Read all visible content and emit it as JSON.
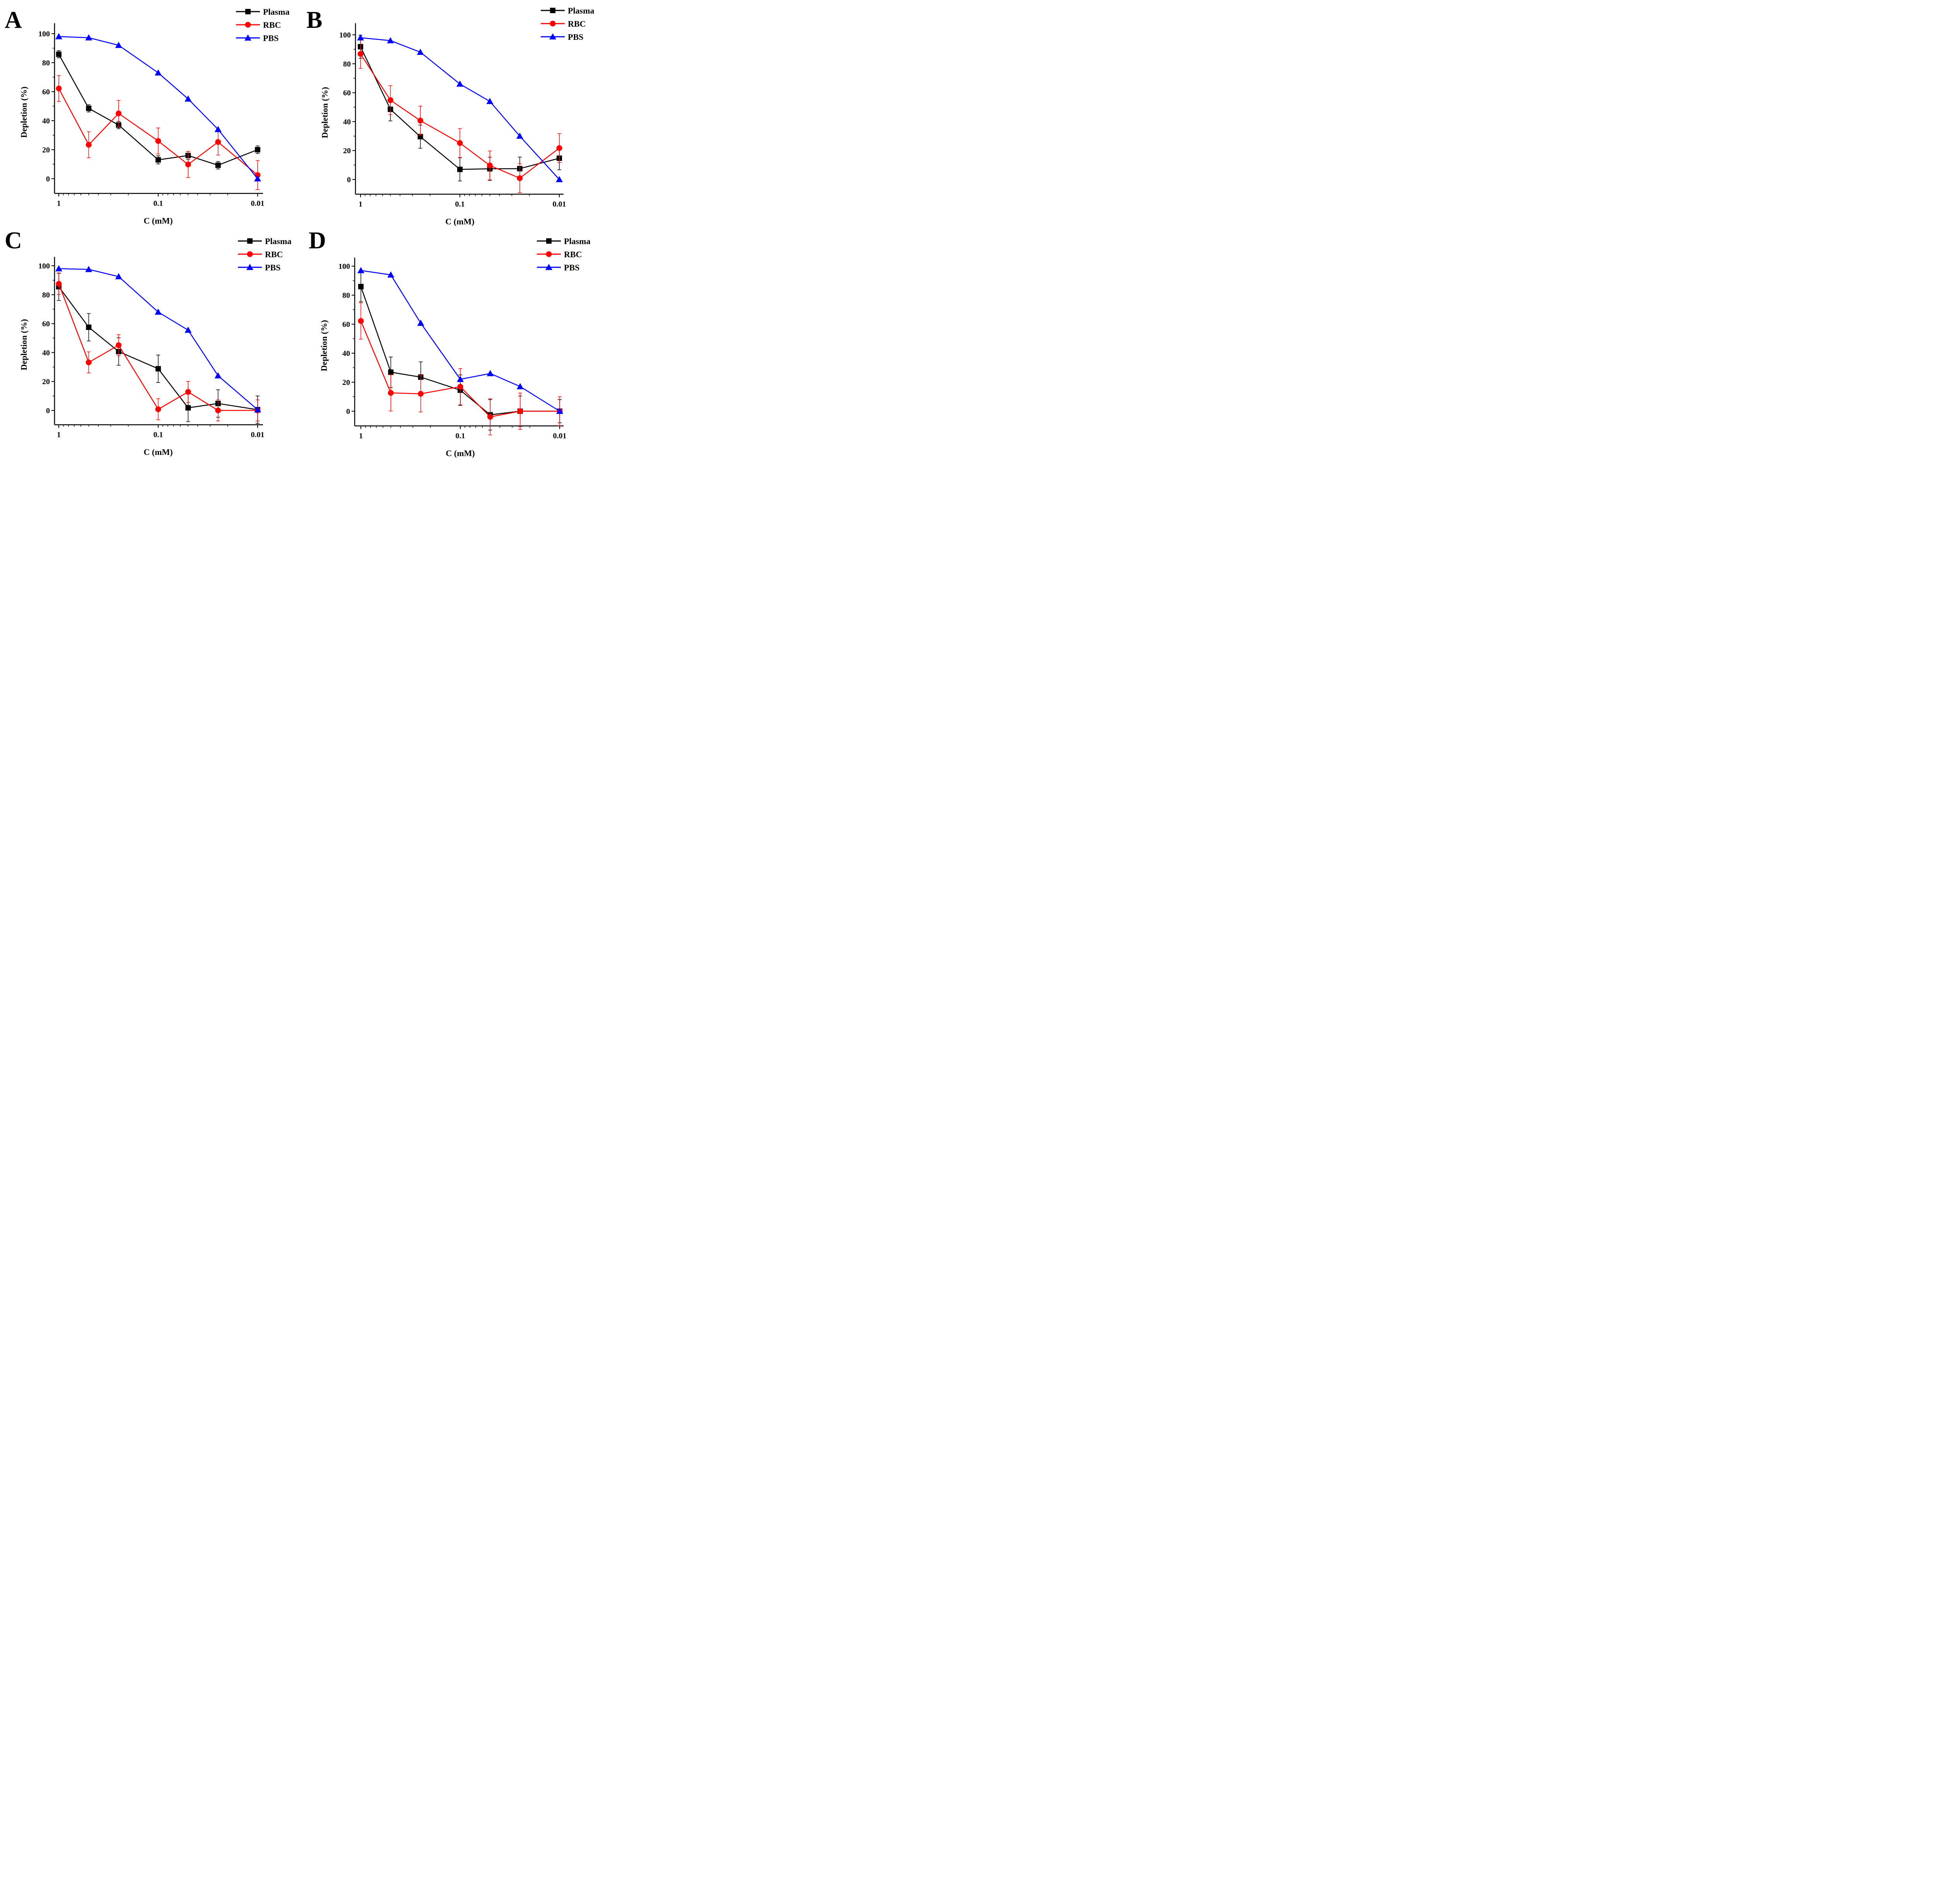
{
  "chart_data": [
    {
      "panel": "A",
      "type": "line",
      "xscale": "log",
      "xaxis_reversed": true,
      "xlabel": "C (mM)",
      "ylabel": "Depletion (%)",
      "xticks": [
        1,
        0.1,
        0.01
      ],
      "xtick_labels": [
        "1",
        "0.1",
        "0.01"
      ],
      "yticks": [
        0,
        20,
        40,
        60,
        80,
        100
      ],
      "ylim": [
        -10,
        105
      ],
      "legend_position": "top-right",
      "x": [
        1,
        0.5,
        0.25,
        0.1,
        0.05,
        0.025,
        0.01
      ],
      "series": [
        {
          "name": "Plasma",
          "color": "#000000",
          "marker": "square",
          "values": [
            85.8,
            48.5,
            37.0,
            13.0,
            16.0,
            9.3,
            20.0
          ],
          "errors": [
            2.5,
            2.5,
            2.5,
            2.8,
            2.8,
            2.6,
            2.6
          ]
        },
        {
          "name": "RBC",
          "color": "#ff0000",
          "marker": "circle",
          "values": [
            62.2,
            23.4,
            45.0,
            26.0,
            9.8,
            25.3,
            2.5
          ],
          "errors": [
            8.9,
            9.0,
            9.0,
            9.0,
            9.0,
            9.0,
            10.0
          ]
        },
        {
          "name": "PBS",
          "color": "#0000ff",
          "marker": "triangle",
          "values": [
            98.0,
            97.2,
            92.0,
            73.0,
            55.0,
            34.0,
            0.0
          ],
          "errors": null
        }
      ]
    },
    {
      "panel": "B",
      "type": "line",
      "xscale": "log",
      "xaxis_reversed": true,
      "xlabel": "C (mM)",
      "ylabel": "Depletion (%)",
      "xticks": [
        1,
        0.1,
        0.01
      ],
      "xtick_labels": [
        "1",
        "0.1",
        "0.01"
      ],
      "yticks": [
        0,
        20,
        40,
        60,
        80,
        100
      ],
      "ylim": [
        -10,
        105
      ],
      "legend_position": "top-right",
      "x": [
        1,
        0.5,
        0.25,
        0.1,
        0.05,
        0.025,
        0.01
      ],
      "series": [
        {
          "name": "Plasma",
          "color": "#000000",
          "marker": "square",
          "values": [
            91.8,
            48.5,
            29.6,
            7.0,
            7.4,
            7.5,
            14.7
          ],
          "errors": [
            8.0,
            8.0,
            8.0,
            8.0,
            8.0,
            8.0,
            8.0
          ]
        },
        {
          "name": "RBC",
          "color": "#ff0000",
          "marker": "circle",
          "values": [
            86.8,
            54.8,
            40.7,
            25.2,
            9.7,
            0.9,
            21.7
          ],
          "errors": [
            10.0,
            10.0,
            10.0,
            10.0,
            10.0,
            10.0,
            10.0
          ]
        },
        {
          "name": "PBS",
          "color": "#0000ff",
          "marker": "triangle",
          "values": [
            98.0,
            96.0,
            88.0,
            66.0,
            54.0,
            30.0,
            0.0
          ],
          "errors": null
        }
      ]
    },
    {
      "panel": "C",
      "type": "line",
      "xscale": "log",
      "xaxis_reversed": true,
      "xlabel": "C (mM)",
      "ylabel": "Depletion (%)",
      "xticks": [
        1,
        0.1,
        0.01
      ],
      "xtick_labels": [
        "1",
        "0.1",
        "0.01"
      ],
      "yticks": [
        0,
        20,
        40,
        60,
        80,
        100
      ],
      "ylim": [
        -10,
        105
      ],
      "legend_position": "top-right",
      "x": [
        1,
        0.5,
        0.25,
        0.1,
        0.05,
        0.025,
        0.01
      ],
      "series": [
        {
          "name": "Plasma",
          "color": "#000000",
          "marker": "square",
          "values": [
            85.5,
            57.5,
            40.7,
            28.8,
            1.8,
            4.8,
            0.5
          ],
          "errors": [
            9.5,
            9.5,
            9.5,
            9.5,
            9.5,
            9.5,
            9.5
          ]
        },
        {
          "name": "RBC",
          "color": "#ff0000",
          "marker": "circle",
          "values": [
            87.5,
            33.2,
            45.1,
            0.8,
            12.8,
            0.0,
            0.0
          ],
          "errors": [
            7.3,
            7.3,
            7.3,
            7.3,
            7.3,
            7.3,
            7.3
          ]
        },
        {
          "name": "PBS",
          "color": "#0000ff",
          "marker": "triangle",
          "values": [
            98.0,
            97.5,
            92.5,
            68.0,
            55.5,
            24.0,
            0.5
          ],
          "errors": null
        }
      ]
    },
    {
      "panel": "D",
      "type": "line",
      "xscale": "log",
      "xaxis_reversed": true,
      "xlabel": "C (mM)",
      "ylabel": "Depletion (%)",
      "xticks": [
        1,
        0.1,
        0.01
      ],
      "xtick_labels": [
        "1",
        "0.1",
        "0.01"
      ],
      "yticks": [
        0,
        20,
        40,
        60,
        80,
        100
      ],
      "ylim": [
        -10,
        105
      ],
      "legend_position": "top-right",
      "x": [
        1,
        0.5,
        0.25,
        0.1,
        0.05,
        0.025,
        0.01
      ],
      "series": [
        {
          "name": "Plasma",
          "color": "#000000",
          "marker": "square",
          "values": [
            85.9,
            26.9,
            23.5,
            14.5,
            -2.5,
            0.0,
            0.0
          ],
          "errors": [
            10.5,
            10.5,
            10.5,
            10.5,
            10.5,
            10.5,
            8.0
          ]
        },
        {
          "name": "RBC",
          "color": "#ff0000",
          "marker": "circle",
          "values": [
            62.2,
            12.6,
            12.0,
            16.9,
            -3.9,
            0.0,
            0.0
          ],
          "errors": [
            12.5,
            12.5,
            12.5,
            12.5,
            12.5,
            12.5,
            10.0
          ]
        },
        {
          "name": "PBS",
          "color": "#0000ff",
          "marker": "triangle",
          "values": [
            97.0,
            94.0,
            60.7,
            22.0,
            26.0,
            17.0,
            0.0
          ],
          "errors": null
        }
      ]
    }
  ]
}
